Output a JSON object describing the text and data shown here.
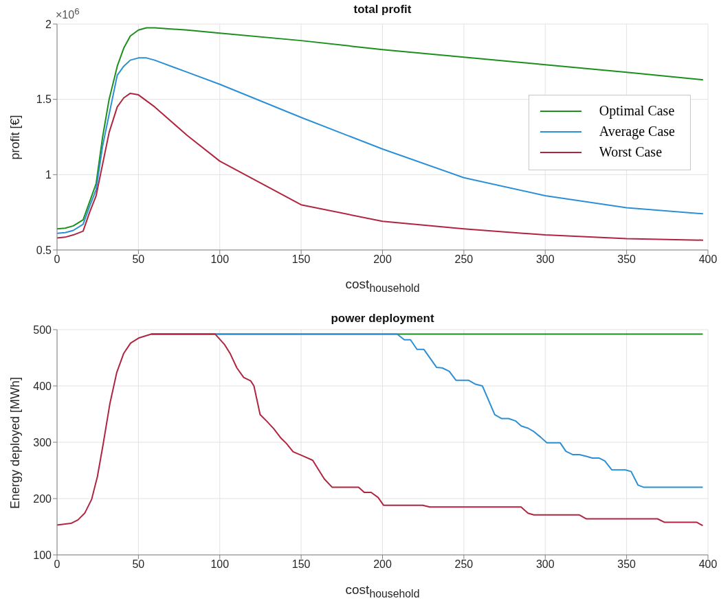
{
  "chart_data": [
    {
      "type": "line",
      "title": "total profit",
      "xlabel": "cost$_{household}$",
      "ylabel": "profit [€]",
      "annotations": [
        "×10$^{6}$"
      ],
      "xlim": [
        0,
        400
      ],
      "xticks": [
        0,
        50,
        100,
        150,
        200,
        250,
        300,
        350,
        400
      ],
      "ylim": [
        0.5,
        2
      ],
      "yticks": [
        0.5,
        1,
        1.5,
        2
      ],
      "grid": true,
      "legend": "right",
      "marker": "none",
      "line_style": "solid",
      "series": [
        {
          "name": "Optimal Case",
          "color": "#1b8f1b",
          "x": [
            0,
            5,
            10,
            16,
            20,
            24,
            28,
            32,
            37,
            41,
            45,
            50,
            55,
            60,
            80,
            100,
            150,
            200,
            250,
            300,
            350,
            397
          ],
          "values": [
            0.64,
            0.645,
            0.66,
            0.7,
            0.82,
            0.94,
            1.25,
            1.5,
            1.72,
            1.84,
            1.92,
            1.96,
            1.975,
            1.975,
            1.96,
            1.94,
            1.89,
            1.83,
            1.78,
            1.73,
            1.68,
            1.63
          ]
        },
        {
          "name": "Average Case",
          "color": "#2b8fd6",
          "x": [
            0,
            5,
            10,
            16,
            20,
            24,
            28,
            32,
            37,
            41,
            45,
            50,
            55,
            60,
            80,
            100,
            150,
            200,
            250,
            300,
            350,
            397
          ],
          "values": [
            0.61,
            0.615,
            0.63,
            0.67,
            0.79,
            0.9,
            1.19,
            1.4,
            1.66,
            1.72,
            1.76,
            1.775,
            1.775,
            1.76,
            1.68,
            1.6,
            1.38,
            1.17,
            0.98,
            0.86,
            0.78,
            0.74
          ]
        },
        {
          "name": "Worst Case",
          "color": "#b0243f",
          "x": [
            0,
            5,
            10,
            16,
            20,
            24,
            28,
            32,
            37,
            41,
            45,
            50,
            55,
            60,
            80,
            100,
            150,
            200,
            250,
            300,
            350,
            397
          ],
          "values": [
            0.58,
            0.585,
            0.6,
            0.625,
            0.75,
            0.86,
            1.07,
            1.28,
            1.45,
            1.51,
            1.54,
            1.53,
            1.49,
            1.45,
            1.26,
            1.09,
            0.8,
            0.69,
            0.64,
            0.6,
            0.575,
            0.565
          ]
        }
      ]
    },
    {
      "type": "line",
      "title": "power deployment",
      "xlabel": "cost$_{household}$",
      "ylabel": "Energy deployed [MWh]",
      "xlim": [
        0,
        400
      ],
      "xticks": [
        0,
        50,
        100,
        150,
        200,
        250,
        300,
        350,
        400
      ],
      "ylim": [
        100,
        500
      ],
      "yticks": [
        100,
        200,
        300,
        400,
        500
      ],
      "grid": true,
      "marker": "none",
      "line_style": "solid",
      "series": [
        {
          "color": "#1b8f1b",
          "x": [
            57.9,
            396.8
          ],
          "values": [
            492,
            492
          ]
        },
        {
          "color": "#2b8fd6",
          "x": [
            57.9,
            209,
            213.4,
            217.2,
            221.2,
            225.4,
            233.2,
            236.7,
            241,
            245.2,
            253,
            257.2,
            261.4,
            269,
            273.3,
            277.5,
            281.7,
            285.2,
            289.4,
            293,
            297.2,
            301,
            309.2,
            312.7,
            317,
            321,
            325.3,
            328.9,
            333,
            336.6,
            340.9,
            349.3,
            352.8,
            357,
            360.6,
            396.8
          ],
          "values": [
            492,
            492,
            482,
            482,
            465,
            465,
            433,
            432,
            426,
            410,
            410,
            403,
            400,
            349,
            342,
            342,
            338,
            329,
            325,
            319,
            309,
            299,
            299,
            284,
            278,
            278,
            275,
            272,
            272,
            267,
            251,
            251,
            248,
            224,
            220,
            220
          ]
        },
        {
          "color": "#b0243f",
          "x": [
            0,
            8.6,
            12.8,
            17,
            21.3,
            24.8,
            28.3,
            32.5,
            36.7,
            41,
            45.2,
            50.1,
            57.9,
            97.2,
            102.8,
            106.3,
            110.5,
            114.7,
            119,
            121,
            124.8,
            129,
            133.2,
            137.4,
            140.9,
            145.1,
            150.8,
            157.1,
            164.2,
            169.1,
            185.3,
            188.8,
            193,
            197.3,
            200.7,
            224.7,
            229,
            285.2,
            289.4,
            293,
            321,
            325.3,
            369,
            373.2,
            393,
            396.8
          ],
          "values": [
            153,
            156,
            162,
            174,
            199,
            239,
            296,
            369,
            424,
            458,
            476,
            485,
            492,
            492,
            474,
            458,
            432,
            415,
            409,
            400,
            349,
            337,
            324,
            308,
            298,
            283,
            276,
            268,
            235,
            220,
            220,
            211,
            211,
            202,
            188,
            188,
            185,
            185,
            174,
            171,
            171,
            164,
            164,
            158,
            158,
            152
          ]
        }
      ]
    }
  ]
}
